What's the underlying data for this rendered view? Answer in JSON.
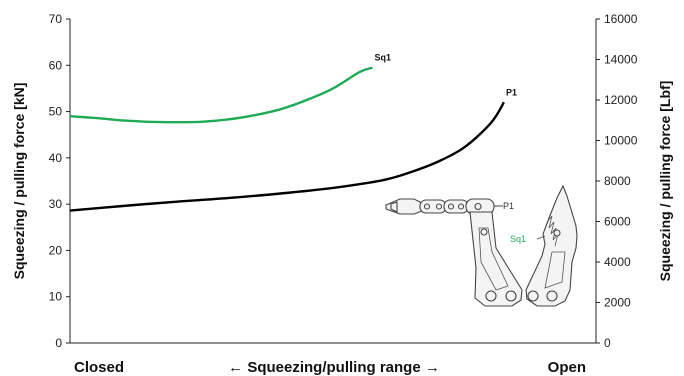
{
  "chart_data": {
    "type": "line",
    "ylabel_left": "Squeezing / pulling force [kN]",
    "ylabel_right": "Squeezing / pulling force [Lbf]",
    "ylim_left": [
      0,
      70
    ],
    "ylim_right": [
      0,
      16000
    ],
    "yticks_left": [
      "0",
      "10",
      "20",
      "30",
      "40",
      "50",
      "60",
      "70"
    ],
    "yticks_right": [
      "0",
      "2000",
      "4000",
      "6000",
      "8000",
      "10000",
      "12000",
      "14000",
      "16000"
    ],
    "x_start_label": "Closed",
    "x_center_label": "← Squeezing/pulling range →",
    "x_end_label": "Open",
    "xlim": [
      0,
      100
    ],
    "grid": false,
    "series": [
      {
        "name": "Sq1",
        "color": "#1faa55",
        "x": [
          0,
          5,
          10,
          15,
          20,
          25,
          30,
          35,
          40,
          45,
          50,
          55,
          57.5
        ],
        "y": [
          49.0,
          48.6,
          48.1,
          47.8,
          47.7,
          47.8,
          48.3,
          49.2,
          50.5,
          52.5,
          55.0,
          58.5,
          59.5
        ]
      },
      {
        "name": "P1",
        "color": "#000000",
        "x": [
          0,
          10,
          20,
          30,
          40,
          50,
          55,
          60,
          65,
          70,
          75,
          80,
          82.5
        ],
        "y": [
          28.6,
          29.6,
          30.5,
          31.3,
          32.3,
          33.5,
          34.3,
          35.3,
          37.0,
          39.2,
          42.3,
          47.5,
          52.0
        ]
      }
    ],
    "inset": {
      "labels": [
        "P1",
        "Sq1"
      ]
    }
  }
}
